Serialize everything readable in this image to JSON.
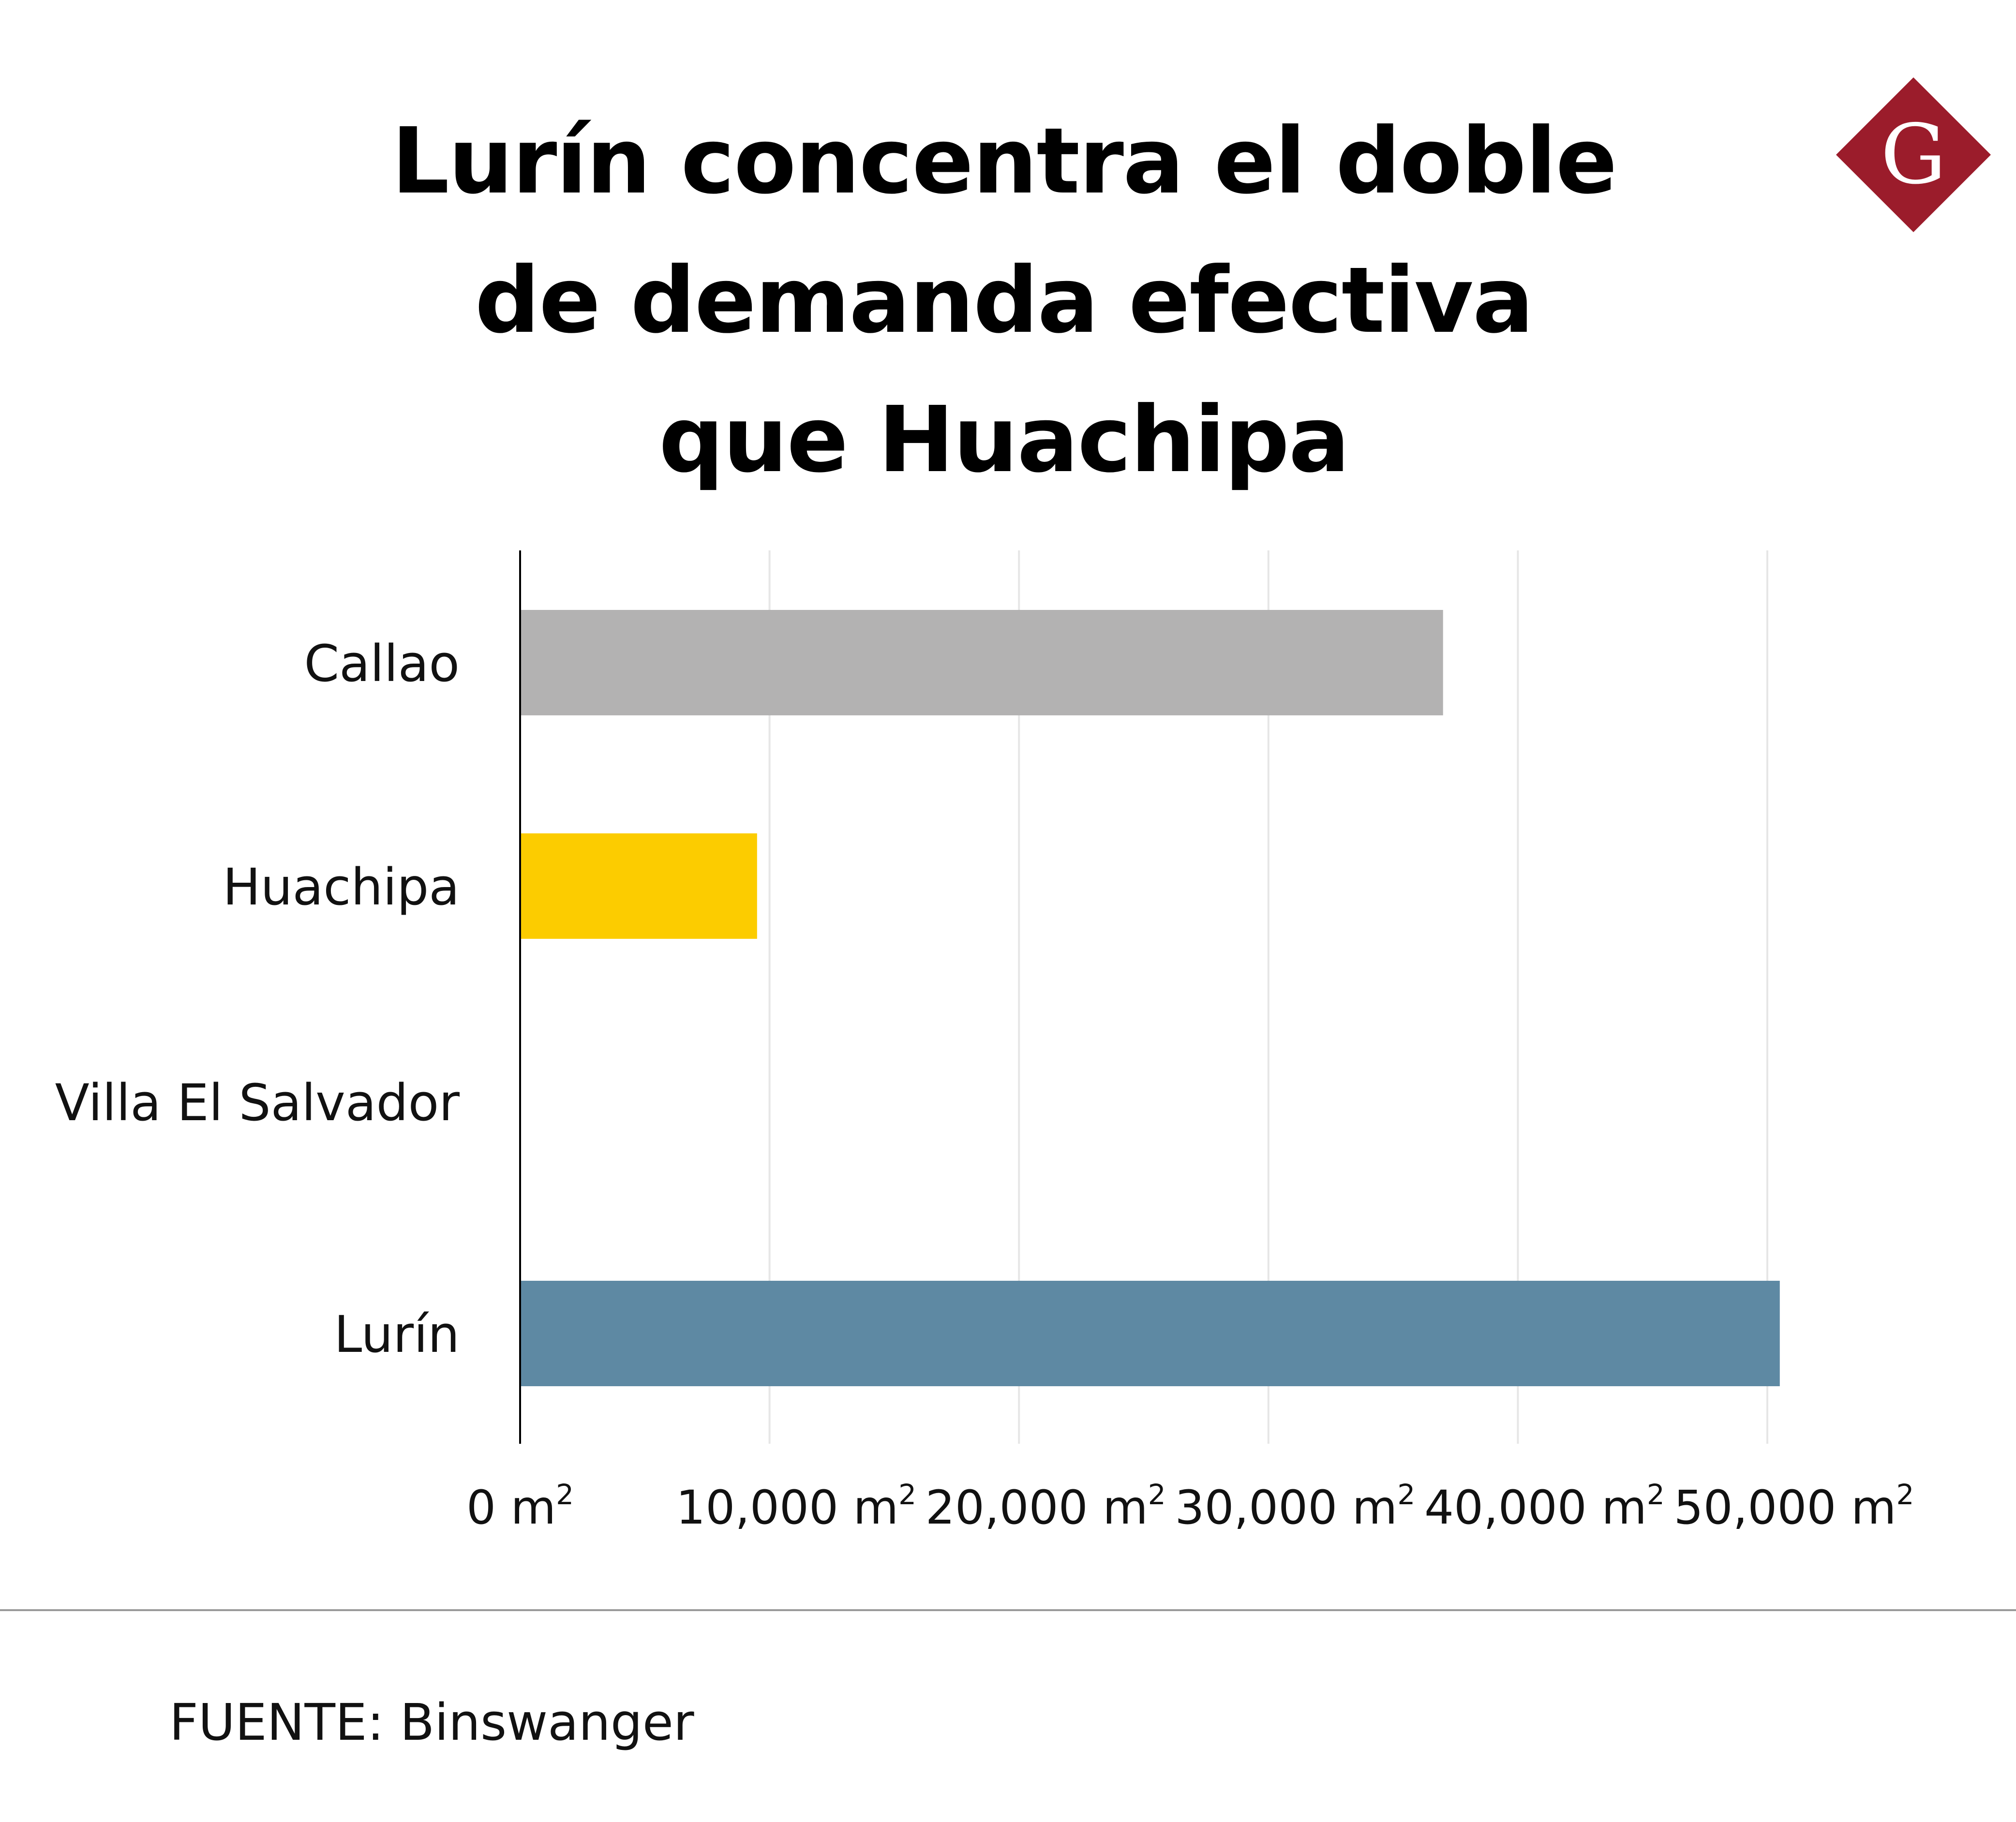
{
  "title_lines": [
    "Lurín concentra el doble",
    "de demanda efectiva",
    "que Huachipa"
  ],
  "logo": {
    "letter": "G",
    "color": "#9b1c2b"
  },
  "source": "FUENTE: Binswanger",
  "chart_data": {
    "type": "bar",
    "orientation": "horizontal",
    "categories": [
      "Callao",
      "Huachipa",
      "Villa El Salvador",
      "Lurín"
    ],
    "values": [
      37000,
      9500,
      0,
      50500
    ],
    "colors": [
      "#b3b2b2",
      "#fccc00",
      "#5e89a3",
      "#5e89a3"
    ],
    "unit": "m",
    "unit_exp": "2",
    "xlim": [
      0,
      50000
    ],
    "xticks": [
      0,
      10000,
      20000,
      30000,
      40000,
      50000
    ],
    "xtick_labels": [
      "0",
      "10,000",
      "20,000",
      "30,000",
      "40,000",
      "50,000"
    ],
    "grid": true,
    "legend": "none"
  }
}
